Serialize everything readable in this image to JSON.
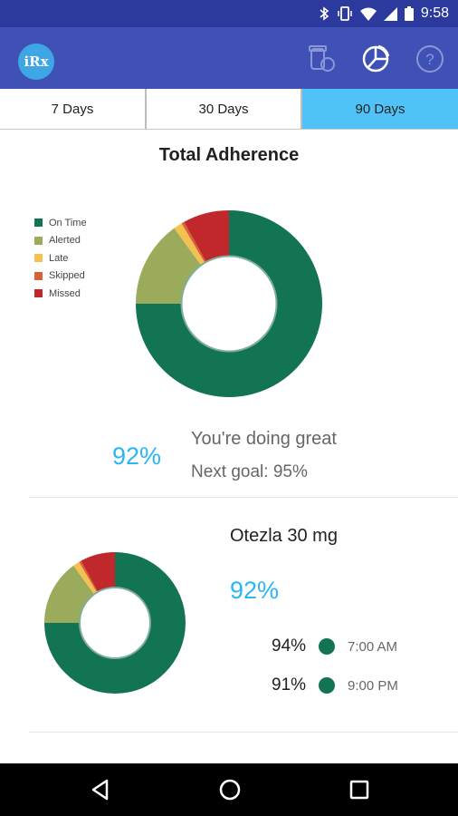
{
  "status_bar": {
    "time": "9:58",
    "icons": [
      "bluetooth-icon",
      "vibrate-icon",
      "wifi-icon",
      "signal-icon",
      "battery-icon"
    ]
  },
  "app_bar": {
    "logo_text": "iRx",
    "actions": [
      "pill-bottle-icon",
      "pie-chart-icon",
      "help-icon"
    ]
  },
  "tabs": [
    {
      "label": "7 Days",
      "selected": false
    },
    {
      "label": "30 Days",
      "selected": false
    },
    {
      "label": "90 Days",
      "selected": true
    }
  ],
  "overview": {
    "title": "Total Adherence",
    "legend": [
      {
        "label": "On Time",
        "color": "#137454"
      },
      {
        "label": "Alerted",
        "color": "#9aab5c"
      },
      {
        "label": "Late",
        "color": "#f4c150"
      },
      {
        "label": "Skipped",
        "color": "#d8613a"
      },
      {
        "label": "Missed",
        "color": "#c0282b"
      }
    ],
    "percent": "92%",
    "message": "You're doing great",
    "next_goal": "Next goal: 95%"
  },
  "chart_data": [
    {
      "type": "pie",
      "title": "Total Adherence",
      "labels": [
        "On Time",
        "Alerted",
        "Late",
        "Skipped",
        "Missed"
      ],
      "values": [
        75,
        15,
        1.5,
        0.5,
        8
      ],
      "colors": [
        "#137454",
        "#9aab5c",
        "#f4c150",
        "#d8613a",
        "#c0282b"
      ],
      "donut": true,
      "legend": "left"
    },
    {
      "type": "pie",
      "title": "",
      "labels": [
        "On Time",
        "Alerted",
        "Late",
        "Skipped",
        "Missed"
      ],
      "values": [
        75,
        15,
        1.5,
        0.5,
        8
      ],
      "colors": [
        "#137454",
        "#9aab5c",
        "#f4c150",
        "#d8613a",
        "#c0282b"
      ],
      "donut": true
    }
  ],
  "medications": [
    {
      "name": "Otezla 30 mg",
      "percent": "92%",
      "doses": [
        {
          "percent": "94%",
          "time": "7:00 AM",
          "color": "#137454"
        },
        {
          "percent": "91%",
          "time": "9:00 PM",
          "color": "#137454"
        }
      ]
    }
  ],
  "nav_bar": {
    "buttons": [
      "back-icon",
      "home-icon",
      "recents-icon"
    ]
  }
}
